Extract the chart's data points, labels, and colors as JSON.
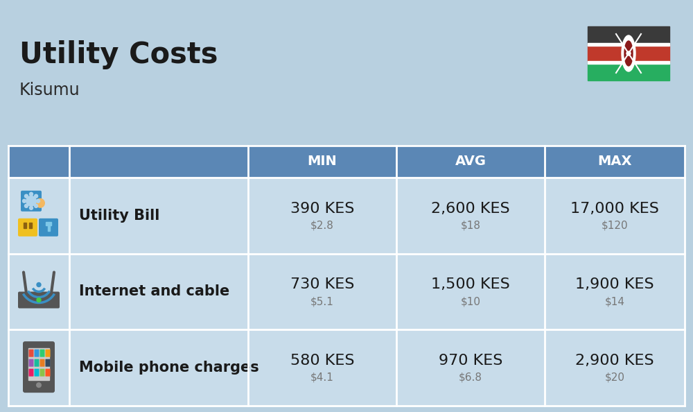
{
  "title": "Utility Costs",
  "subtitle": "Kisumu",
  "background_color": "#b8d0e0",
  "table_header_color": "#5b87b5",
  "table_header_text_color": "#ffffff",
  "table_row_color": "#c8dcea",
  "table_border_color": "#ffffff",
  "col_headers": [
    "MIN",
    "AVG",
    "MAX"
  ],
  "rows": [
    {
      "label": "Utility Bill",
      "icon": "utility",
      "min_kes": "390 KES",
      "min_usd": "$2.8",
      "avg_kes": "2,600 KES",
      "avg_usd": "$18",
      "max_kes": "17,000 KES",
      "max_usd": "$120"
    },
    {
      "label": "Internet and cable",
      "icon": "internet",
      "min_kes": "730 KES",
      "min_usd": "$5.1",
      "avg_kes": "1,500 KES",
      "avg_usd": "$10",
      "max_kes": "1,900 KES",
      "max_usd": "$14"
    },
    {
      "label": "Mobile phone charges",
      "icon": "mobile",
      "min_kes": "580 KES",
      "min_usd": "$4.1",
      "avg_kes": "970 KES",
      "avg_usd": "$6.8",
      "max_kes": "2,900 KES",
      "max_usd": "$20"
    }
  ],
  "title_fontsize": 30,
  "subtitle_fontsize": 17,
  "header_fontsize": 14,
  "cell_kes_fontsize": 16,
  "cell_usd_fontsize": 11,
  "label_fontsize": 15,
  "flag_black": "#3a3a3a",
  "flag_red": "#c0392b",
  "flag_green": "#27ae60",
  "flag_white": "#ffffff"
}
